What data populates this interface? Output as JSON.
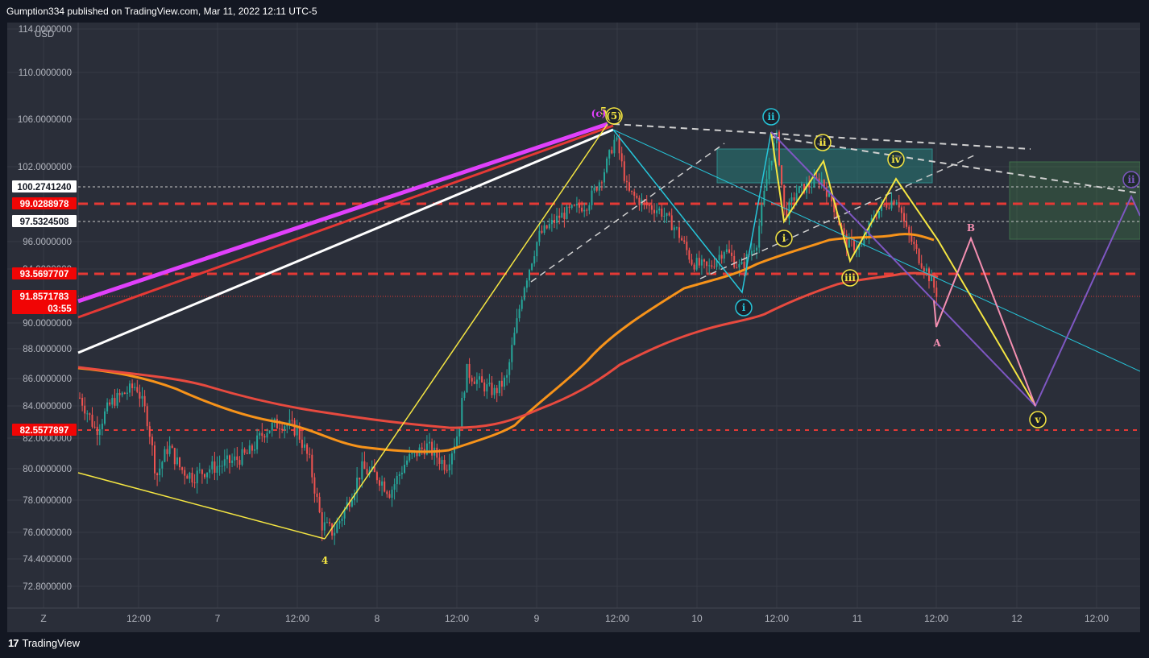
{
  "header": {
    "publisher_line": "Gumption334 published on TradingView.com, Mar 11, 2022 12:11 UTC-5"
  },
  "footer": {
    "brand": "TradingView"
  },
  "colors": {
    "background": "#131722",
    "candle_up": "#26a69a",
    "candle_down": "#ef5350",
    "ma_fast": "#f7931a",
    "ma_slow": "#e84a3f",
    "wave_yellow": "#f5e642",
    "wave_cyan": "#26c6da",
    "wave_purple": "#7e57c2",
    "projection_pink": "#f48fb1",
    "magenta": "#e040fb",
    "level_red": "#e53935"
  },
  "chart_data": {
    "type": "candlestick",
    "title": "",
    "y_unit": "USD",
    "y_scale": "log",
    "y_range": [
      71.0,
      115.0
    ],
    "y_ticks": [
      "114.0000000",
      "110.0000000",
      "106.0000000",
      "102.0000000",
      "96.0000000",
      "94.0000000",
      "90.0000000",
      "88.0000000",
      "86.0000000",
      "84.0000000",
      "82.0000000",
      "80.0000000",
      "78.0000000",
      "76.0000000",
      "74.4000000",
      "72.8000000"
    ],
    "x_ticks": [
      "Z",
      "12:00",
      "7",
      "12:00",
      "8",
      "12:00",
      "9",
      "12:00",
      "10",
      "12:00",
      "11",
      "12:00",
      "12",
      "12:00"
    ],
    "price_badges": [
      {
        "label": "100.2741240",
        "value": 100.274124,
        "style": "white"
      },
      {
        "label": "99.0288978",
        "value": 99.0288978,
        "style": "red"
      },
      {
        "label": "97.5324508",
        "value": 97.5324508,
        "style": "white"
      },
      {
        "label": "93.5697707",
        "value": 93.5697707,
        "style": "red"
      },
      {
        "label": "91.8571783",
        "sub": "03:55",
        "value": 91.8571783,
        "style": "red"
      },
      {
        "label": "82.5577897",
        "value": 82.5577897,
        "style": "red"
      }
    ],
    "wave_labels": [
      {
        "text": "5",
        "style": "plain-yellow"
      },
      {
        "text": "(5)",
        "style": "circle-yellow"
      },
      {
        "text": "(c)",
        "style": "plain-magenta"
      },
      {
        "text": "4",
        "style": "plain-yellow"
      },
      {
        "text": "ii",
        "style": "circle-cyan"
      },
      {
        "text": "i",
        "style": "circle-cyan"
      },
      {
        "text": "ii",
        "style": "circle-yellow"
      },
      {
        "text": "i",
        "style": "circle-yellow"
      },
      {
        "text": "iii",
        "style": "circle-yellow"
      },
      {
        "text": "iv",
        "style": "circle-yellow"
      },
      {
        "text": "v",
        "style": "circle-yellow"
      },
      {
        "text": "ii",
        "style": "circle-purple"
      },
      {
        "text": "A",
        "style": "plain-pink"
      },
      {
        "text": "B",
        "style": "plain-pink"
      }
    ],
    "legend": "none",
    "grid": true
  }
}
